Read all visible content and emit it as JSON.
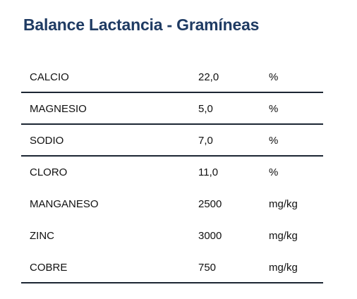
{
  "header": {
    "title": "Balance Lactancia - Gramíneas"
  },
  "table": {
    "rows": [
      [
        "CALCIO",
        "22,0",
        "%"
      ],
      [
        "MAGNESIO",
        "5,0",
        "%"
      ],
      [
        "SODIO",
        "7,0",
        "%"
      ],
      [
        "CLORO",
        "11,0",
        "%"
      ],
      [
        "MANGANESO",
        "2500",
        "mg/kg"
      ],
      [
        "ZINC",
        "3000",
        "mg/kg"
      ],
      [
        "COBRE",
        "750",
        "mg/kg"
      ]
    ]
  }
}
